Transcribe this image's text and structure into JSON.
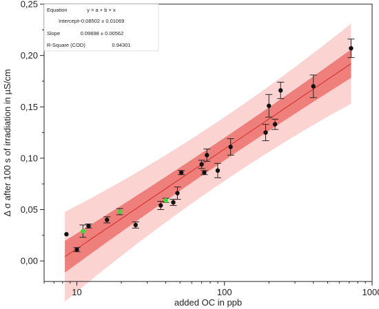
{
  "chart_data": {
    "type": "scatter",
    "xlabel": "added OC in ppb",
    "ylabel": "Δ σ after 100 s of irradiation in µS/cm",
    "x_scale": "log",
    "xlim": [
      6,
      1000
    ],
    "ylim": [
      -0.02,
      0.25
    ],
    "x_ticks": [
      {
        "value": 10,
        "label": "10"
      },
      {
        "value": 100,
        "label": "100"
      },
      {
        "value": 1000,
        "label": "1000"
      }
    ],
    "y_ticks": [
      {
        "value": 0.0,
        "label": "0,00"
      },
      {
        "value": 0.05,
        "label": "0,05"
      },
      {
        "value": 0.1,
        "label": "0,10"
      },
      {
        "value": 0.15,
        "label": "0,15"
      },
      {
        "value": 0.2,
        "label": "0,20"
      },
      {
        "value": 0.25,
        "label": "0,25"
      }
    ],
    "stats_table": [
      {
        "label": "Equation",
        "value": "y = a + b × x"
      },
      {
        "label": "Intercept",
        "value": "−0.08502 ± 0.01069"
      },
      {
        "label": "Slope",
        "value": "0.09698 ± 0.00562"
      },
      {
        "label": "R-Square (COD)",
        "value": "0.94301"
      }
    ],
    "fit": {
      "intercept": -0.08502,
      "slope": 0.09698
    },
    "bands": {
      "confidence_halfwidth": 0.011,
      "prediction_halfwidth": 0.031
    },
    "colors": {
      "prediction_band": "#fbd3d1",
      "confidence_band": "#ef7f7b",
      "fit_line": "#d22a2a",
      "point": "#111111",
      "highlight_point": "#33dd33"
    },
    "series": [
      {
        "color": "#111111",
        "points": [
          {
            "x": 8.5,
            "y": 0.026,
            "err": 0
          },
          {
            "x": 10,
            "y": 0.011,
            "err": 0.002
          },
          {
            "x": 12,
            "y": 0.034,
            "err": 0.002
          },
          {
            "x": 16,
            "y": 0.04,
            "err": 0.003
          },
          {
            "x": 25,
            "y": 0.035,
            "err": 0.003
          },
          {
            "x": 37,
            "y": 0.054,
            "err": 0.004
          },
          {
            "x": 45,
            "y": 0.057,
            "err": 0.003
          },
          {
            "x": 48,
            "y": 0.066,
            "err": 0.006
          },
          {
            "x": 51,
            "y": 0.086,
            "err": 0.002
          },
          {
            "x": 70,
            "y": 0.094,
            "err": 0.004
          },
          {
            "x": 73,
            "y": 0.086,
            "err": 0.002
          },
          {
            "x": 76,
            "y": 0.103,
            "err": 0.006
          },
          {
            "x": 90,
            "y": 0.088,
            "err": 0.007
          },
          {
            "x": 110,
            "y": 0.111,
            "err": 0.008
          },
          {
            "x": 190,
            "y": 0.125,
            "err": 0.008
          },
          {
            "x": 200,
            "y": 0.151,
            "err": 0.011
          },
          {
            "x": 220,
            "y": 0.133,
            "err": 0.005
          },
          {
            "x": 240,
            "y": 0.166,
            "err": 0.008
          },
          {
            "x": 400,
            "y": 0.17,
            "err": 0.011
          },
          {
            "x": 720,
            "y": 0.207,
            "err": 0.009
          }
        ]
      },
      {
        "color": "#33dd33",
        "points": [
          {
            "x": 11,
            "y": 0.029,
            "err": 0.006
          },
          {
            "x": 19.5,
            "y": 0.048,
            "err": 0.003
          },
          {
            "x": 40,
            "y": 0.059,
            "err": 0.002
          }
        ]
      }
    ]
  }
}
